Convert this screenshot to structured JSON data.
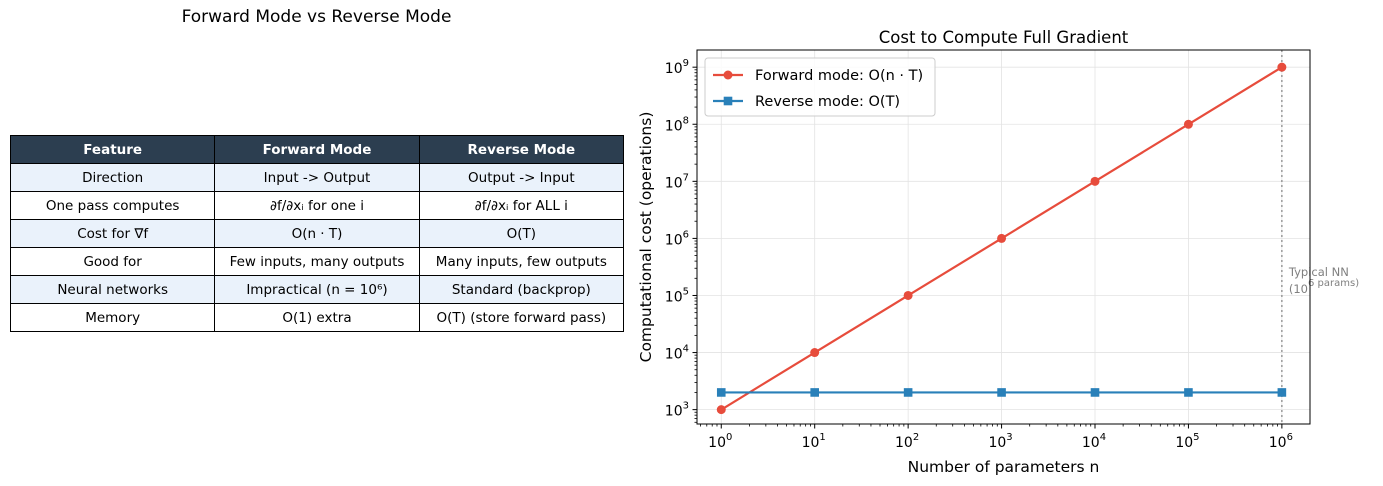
{
  "table": {
    "title": "Forward Mode vs Reverse Mode",
    "headers": [
      "Feature",
      "Forward Mode",
      "Reverse Mode"
    ],
    "rows": [
      [
        "Direction",
        "Input -> Output",
        "Output -> Input"
      ],
      [
        "One pass computes",
        "∂f/∂xᵢ for one i",
        "∂f/∂xᵢ for ALL i"
      ],
      [
        "Cost for ∇f",
        "O(n · T)",
        "O(T)"
      ],
      [
        "Good for",
        "Few inputs, many outputs",
        "Many inputs, few outputs"
      ],
      [
        "Neural networks",
        "Impractical (n = 10⁶)",
        "Standard (backprop)"
      ],
      [
        "Memory",
        "O(1) extra",
        "O(T) (store forward pass)"
      ]
    ],
    "colors": {
      "header_bg": "#2c3e50",
      "header_fg": "#ffffff",
      "odd_row_bg": "#eaf2fb",
      "even_row_bg": "#ffffff"
    }
  },
  "chart_data": {
    "type": "line",
    "title": "Cost to Compute Full Gradient",
    "xlabel": "Number of parameters n",
    "ylabel": "Computational cost (operations)",
    "xscale": "log",
    "yscale": "log",
    "x": [
      1,
      10,
      100,
      1000,
      10000,
      100000,
      1000000
    ],
    "xticks": [
      "10^0",
      "10^1",
      "10^2",
      "10^3",
      "10^4",
      "10^5",
      "10^6"
    ],
    "yticks": [
      "10^3",
      "10^4",
      "10^5",
      "10^6",
      "10^7",
      "10^8",
      "10^9"
    ],
    "xlim": [
      0.55,
      2000000
    ],
    "ylim": [
      560,
      2000000000
    ],
    "grid": true,
    "legend_position": "top-left",
    "series": [
      {
        "name": "Forward mode: O(n · T)",
        "color": "#e74c3c",
        "marker": "circle",
        "values": [
          1000,
          10000,
          100000,
          1000000,
          10000000,
          100000000,
          1000000000
        ]
      },
      {
        "name": "Reverse mode: O(T)",
        "color": "#2980b9",
        "marker": "square",
        "values": [
          2000,
          2000,
          2000,
          2000,
          2000,
          2000,
          2000
        ]
      }
    ],
    "annotation": {
      "x": 1000000,
      "line": "dotted-vertical",
      "color": "#808080",
      "text_line1": "Typical NN",
      "text_line2": "(10^6 params)"
    }
  }
}
